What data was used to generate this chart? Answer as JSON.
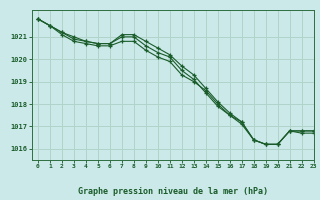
{
  "title": "Graphe pression niveau de la mer (hPa)",
  "bg_color": "#cbe9e9",
  "grid_color": "#b0d4c8",
  "line_color": "#1a5c2a",
  "spine_color": "#2d6e3e",
  "xlim": [
    -0.5,
    23
  ],
  "ylim": [
    1015.5,
    1022.2
  ],
  "yticks": [
    1016,
    1017,
    1018,
    1019,
    1020,
    1021
  ],
  "xticks": [
    0,
    1,
    2,
    3,
    4,
    5,
    6,
    7,
    8,
    9,
    10,
    11,
    12,
    13,
    14,
    15,
    16,
    17,
    18,
    19,
    20,
    21,
    22,
    23
  ],
  "series": [
    [
      1021.8,
      1021.5,
      1021.2,
      1020.9,
      1020.8,
      1020.7,
      1020.7,
      1021.0,
      1021.0,
      1020.6,
      1020.3,
      1020.1,
      1019.5,
      1019.1,
      1018.5,
      1017.9,
      1017.5,
      1017.1,
      1016.4,
      1016.2,
      1016.2,
      1016.8,
      1016.7,
      1016.7
    ],
    [
      1021.8,
      1021.5,
      1021.2,
      1021.0,
      1020.8,
      1020.7,
      1020.7,
      1021.1,
      1021.1,
      1020.8,
      1020.5,
      1020.2,
      1019.7,
      1019.3,
      1018.7,
      1018.1,
      1017.6,
      1017.2,
      1016.4,
      1016.2,
      1016.2,
      1016.8,
      1016.8,
      1016.8
    ],
    [
      1021.8,
      1021.5,
      1021.1,
      1020.8,
      1020.7,
      1020.6,
      1020.6,
      1020.8,
      1020.8,
      1020.4,
      1020.1,
      1019.9,
      1019.3,
      1019.0,
      1018.6,
      1018.0,
      1017.5,
      1017.2,
      1016.4,
      1016.2,
      1016.2,
      1016.8,
      1016.8,
      1016.8
    ]
  ],
  "figsize": [
    3.2,
    2.0
  ],
  "dpi": 100
}
